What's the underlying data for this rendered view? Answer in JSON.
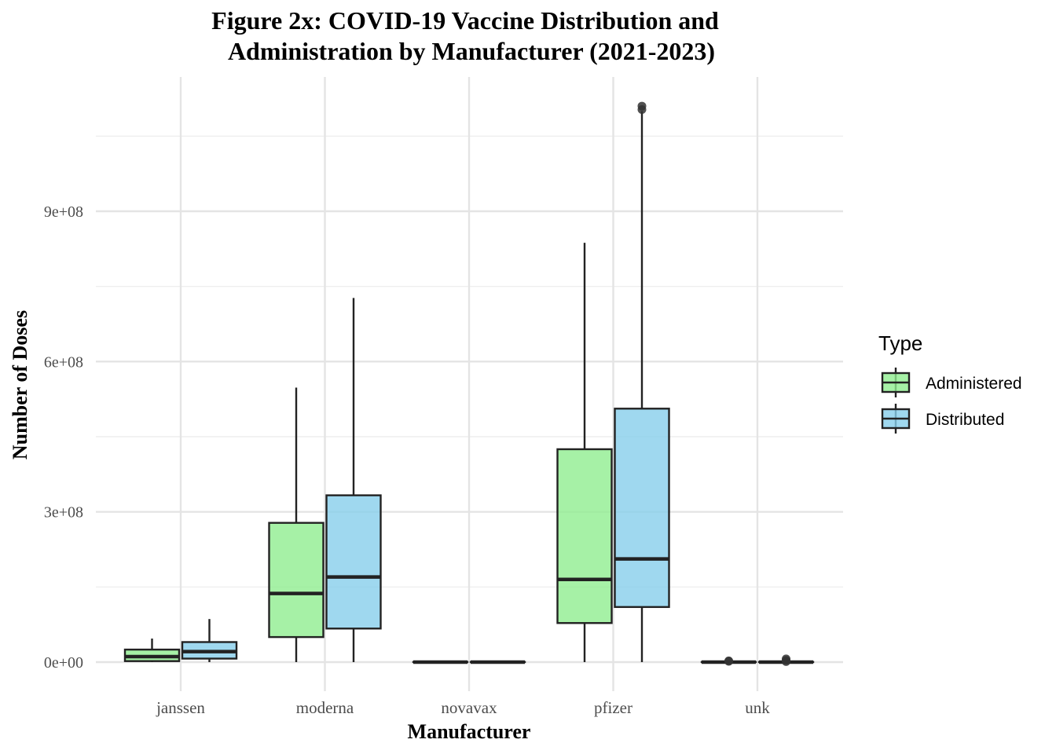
{
  "chart_data": {
    "type": "boxplot",
    "title": "Figure 2x: COVID-19 Vaccine Distribution and\nAdministration by Manufacturer (2021-2023)",
    "xlabel": "Manufacturer",
    "ylabel": "Number of Doses",
    "categories": [
      "janssen",
      "moderna",
      "novavax",
      "pfizer",
      "unk"
    ],
    "ylim": [
      -55000000,
      1160000000
    ],
    "yticks": [
      0,
      300000000,
      600000000,
      900000000
    ],
    "ytick_labels": [
      "0e+00",
      "3e+08",
      "6e+08",
      "9e+08"
    ],
    "grid": true,
    "legend": {
      "title": "Type",
      "placement": "right"
    },
    "series": [
      {
        "name": "Administered",
        "color": "#90EE90",
        "boxes": [
          {
            "category": "janssen",
            "whisker_low": 0,
            "q1": 2000000,
            "median": 11000000,
            "q3": 25000000,
            "whisker_high": 47000000,
            "outliers": []
          },
          {
            "category": "moderna",
            "whisker_low": 0,
            "q1": 50000000,
            "median": 137000000,
            "q3": 278000000,
            "whisker_high": 548000000,
            "outliers": []
          },
          {
            "category": "novavax",
            "whisker_low": 0,
            "q1": 0,
            "median": 0,
            "q3": 300000,
            "whisker_high": 600000,
            "outliers": []
          },
          {
            "category": "pfizer",
            "whisker_low": 0,
            "q1": 78000000,
            "median": 165000000,
            "q3": 425000000,
            "whisker_high": 837000000,
            "outliers": []
          },
          {
            "category": "unk",
            "whisker_low": 0,
            "q1": 0,
            "median": 0,
            "q3": 300000,
            "whisker_high": 600000,
            "outliers": [
              1500000,
              2500000
            ]
          }
        ]
      },
      {
        "name": "Distributed",
        "color": "#87CEEB",
        "boxes": [
          {
            "category": "janssen",
            "whisker_low": 0,
            "q1": 7000000,
            "median": 21000000,
            "q3": 40000000,
            "whisker_high": 86000000,
            "outliers": []
          },
          {
            "category": "moderna",
            "whisker_low": 0,
            "q1": 67000000,
            "median": 170000000,
            "q3": 333000000,
            "whisker_high": 727000000,
            "outliers": []
          },
          {
            "category": "novavax",
            "whisker_low": 0,
            "q1": 0,
            "median": 0,
            "q3": 300000,
            "whisker_high": 600000,
            "outliers": []
          },
          {
            "category": "pfizer",
            "whisker_low": 0,
            "q1": 110000000,
            "median": 206000000,
            "q3": 506000000,
            "whisker_high": 1100000000,
            "outliers": [
              1103000000,
              1110000000
            ]
          },
          {
            "category": "unk",
            "whisker_low": 0,
            "q1": 0,
            "median": 0,
            "q3": 300000,
            "whisker_high": 600000,
            "outliers": [
              1000000,
              3500000,
              6500000
            ]
          }
        ]
      }
    ]
  }
}
